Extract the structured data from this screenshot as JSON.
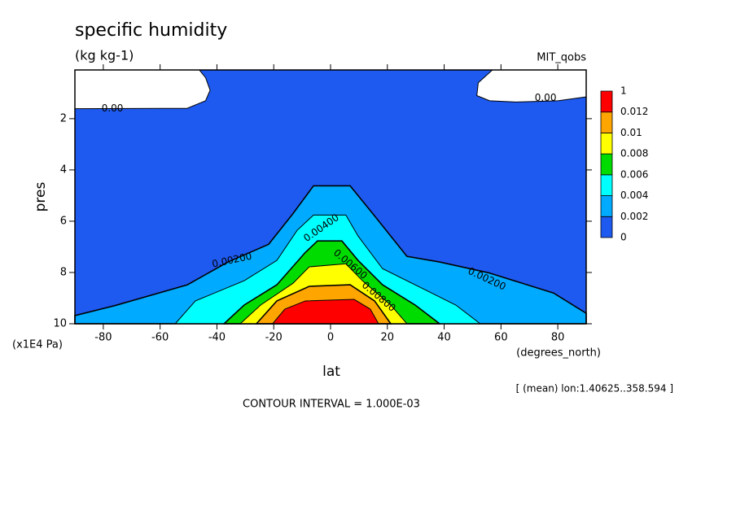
{
  "chart_data": {
    "type": "contour",
    "title": "specific humidity",
    "subtitle": "(kg kg-1)",
    "dataset": "MIT_qobs",
    "x_label": "lat",
    "x_units": "(degrees_north)",
    "y_label": "pres",
    "y_units": "(x1E4 Pa)",
    "note": "[ (mean) lon:1.40625..358.594 ]",
    "footer": "CONTOUR INTERVAL = 1.000E-03",
    "xlim": [
      -90,
      90
    ],
    "ylim": [
      10,
      0.1
    ],
    "xticks": [
      -80,
      -60,
      -40,
      -20,
      0,
      20,
      40,
      60,
      80
    ],
    "yticks": [
      2,
      4,
      6,
      8,
      10
    ],
    "levels": [
      0,
      0.002,
      0.004,
      0.006,
      0.008,
      0.01,
      0.012,
      1
    ],
    "colors": [
      "#1e5af0",
      "#00aaff",
      "#00ffff",
      "#00dc00",
      "#ffff00",
      "#ffa500",
      "#ff0000"
    ],
    "regions": [
      {
        "level": 0,
        "lat": [
          -90,
          -60,
          -50.5,
          -44,
          -42.4,
          -44,
          -46.2,
          57,
          52,
          51.5,
          56,
          65,
          80,
          90,
          90,
          -90
        ],
        "pres": [
          1.61,
          1.6,
          1.6,
          1.3,
          0.89,
          0.4,
          0.1,
          0.1,
          0.6,
          1.1,
          1.3,
          1.35,
          1.3,
          1.15,
          10,
          10
        ]
      },
      {
        "level": 0.002,
        "lat": [
          -90,
          -76.2,
          -50.4,
          -36.1,
          -21.8,
          -13.2,
          -6,
          6.9,
          15.5,
          26.9,
          38.4,
          55.6,
          78.5,
          90,
          90,
          -90
        ],
        "pres": [
          9.68,
          9.3,
          8.48,
          7.59,
          6.9,
          5.7,
          4.62,
          4.62,
          5.79,
          7.37,
          7.59,
          8.01,
          8.8,
          9.59,
          10,
          10
        ]
      },
      {
        "level": 0.004,
        "lat": [
          -54.7,
          -47.6,
          -30.4,
          -18.9,
          -11.8,
          -6,
          5.4,
          9.7,
          18.3,
          32.7,
          44.1,
          52.7
        ],
        "pres": [
          10,
          9.11,
          8.32,
          7.53,
          6.36,
          5.76,
          5.76,
          6.58,
          7.85,
          8.64,
          9.27,
          10
        ]
      },
      {
        "level": 0.006,
        "lat": [
          -37.5,
          -30.4,
          -18.9,
          -8.9,
          -4.6,
          4,
          9.7,
          18.3,
          29.8,
          38.4
        ],
        "pres": [
          10,
          9.27,
          8.48,
          7.22,
          6.77,
          6.77,
          7.53,
          8.48,
          9.27,
          10
        ]
      },
      {
        "level": 0.008,
        "lat": [
          -31.8,
          -24.6,
          -13.2,
          -7.5,
          5.4,
          11.2,
          21.2,
          26.9
        ],
        "pres": [
          10,
          9.27,
          8.42,
          7.78,
          7.66,
          8.32,
          9.27,
          10
        ]
      },
      {
        "level": 0.01,
        "lat": [
          -26.1,
          -18.9,
          -7.5,
          6.9,
          15.5,
          21.2
        ],
        "pres": [
          10,
          9.11,
          8.54,
          8.48,
          9.11,
          10
        ]
      },
      {
        "level": 0.012,
        "lat": [
          -20.4,
          -16.1,
          -8.9,
          8.3,
          14,
          16.9
        ],
        "pres": [
          10,
          9.43,
          9.11,
          9.05,
          9.43,
          10
        ]
      }
    ],
    "contour_labels": [
      {
        "value": 0,
        "label": "0.00",
        "lat": -76.8,
        "pres": 1.61
      },
      {
        "value": 0,
        "label": "0.00",
        "lat": 75.7,
        "pres": 1.2
      },
      {
        "value": 0.002,
        "label": "0.00200",
        "lat": -34.7,
        "pres": 7.53
      },
      {
        "value": 0.004,
        "label": "0.00400",
        "lat": -3.2,
        "pres": 6.27
      },
      {
        "value": 0.006,
        "label": "0.00600",
        "lat": 6.9,
        "pres": 7.69
      },
      {
        "value": 0.008,
        "label": "0.00800",
        "lat": 16.9,
        "pres": 8.95
      },
      {
        "value": 0.002,
        "label": "0.00200",
        "lat": 55,
        "pres": 8.26
      }
    ]
  }
}
